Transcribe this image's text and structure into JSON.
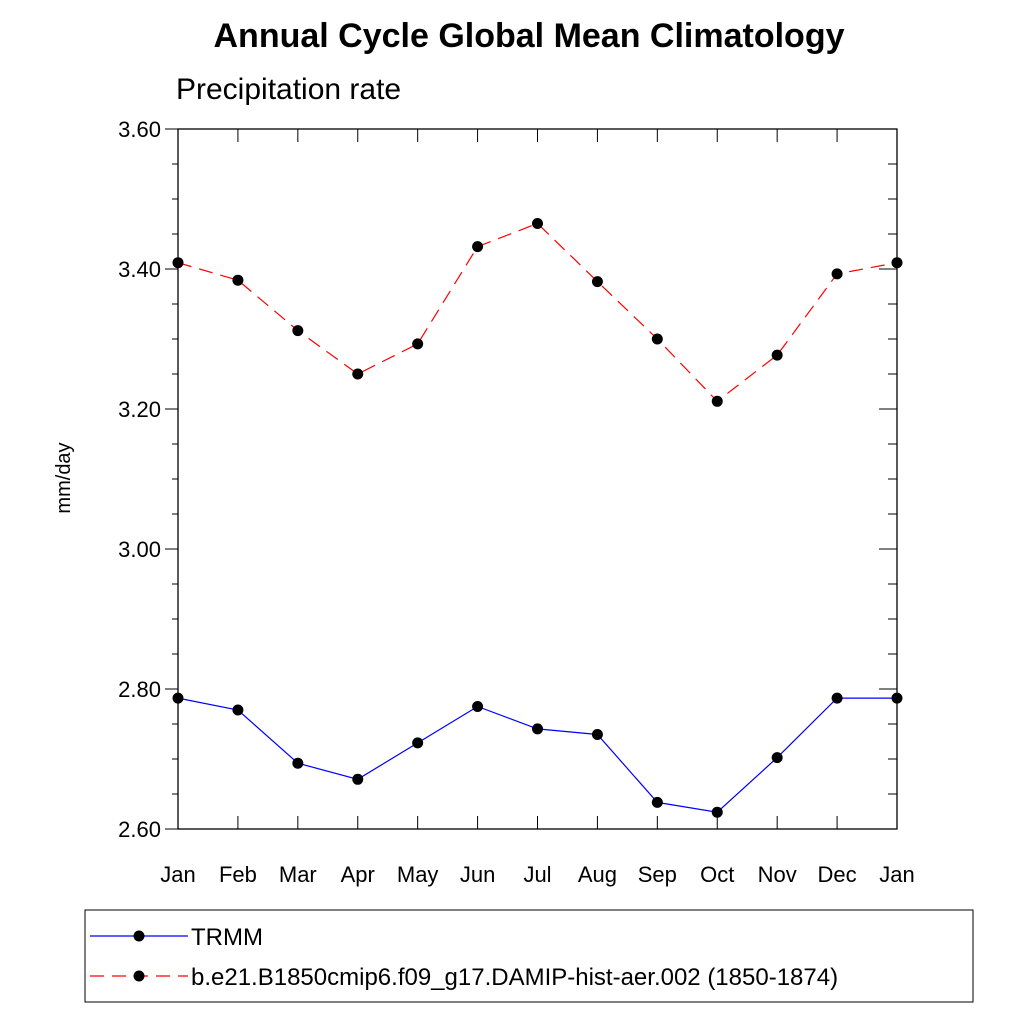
{
  "chart_data": {
    "type": "line",
    "title": "Annual Cycle Global Mean Climatology",
    "subtitle": "Precipitation rate",
    "xlabel": "",
    "ylabel": "mm/day",
    "categories": [
      "Jan",
      "Feb",
      "Mar",
      "Apr",
      "May",
      "Jun",
      "Jul",
      "Aug",
      "Sep",
      "Oct",
      "Nov",
      "Dec",
      "Jan"
    ],
    "ylim": [
      2.6,
      3.6
    ],
    "yticks": [
      "2.60",
      "2.80",
      "3.00",
      "3.20",
      "3.40",
      "3.60"
    ],
    "series": [
      {
        "name": "TRMM",
        "color": "#0000ff",
        "dash": "solid",
        "values": [
          2.787,
          2.77,
          2.694,
          2.671,
          2.723,
          2.775,
          2.743,
          2.735,
          2.638,
          2.624,
          2.702,
          2.787,
          2.787
        ]
      },
      {
        "name": "b.e21.B1850cmip6.f09_g17.DAMIP-hist-aer.002 (1850-1874)",
        "color": "#ff0000",
        "dash": "dashed",
        "values": [
          3.409,
          3.384,
          3.312,
          3.25,
          3.293,
          3.432,
          3.465,
          3.382,
          3.3,
          3.211,
          3.277,
          3.393,
          3.409
        ]
      }
    ],
    "legend_position": "bottom"
  }
}
